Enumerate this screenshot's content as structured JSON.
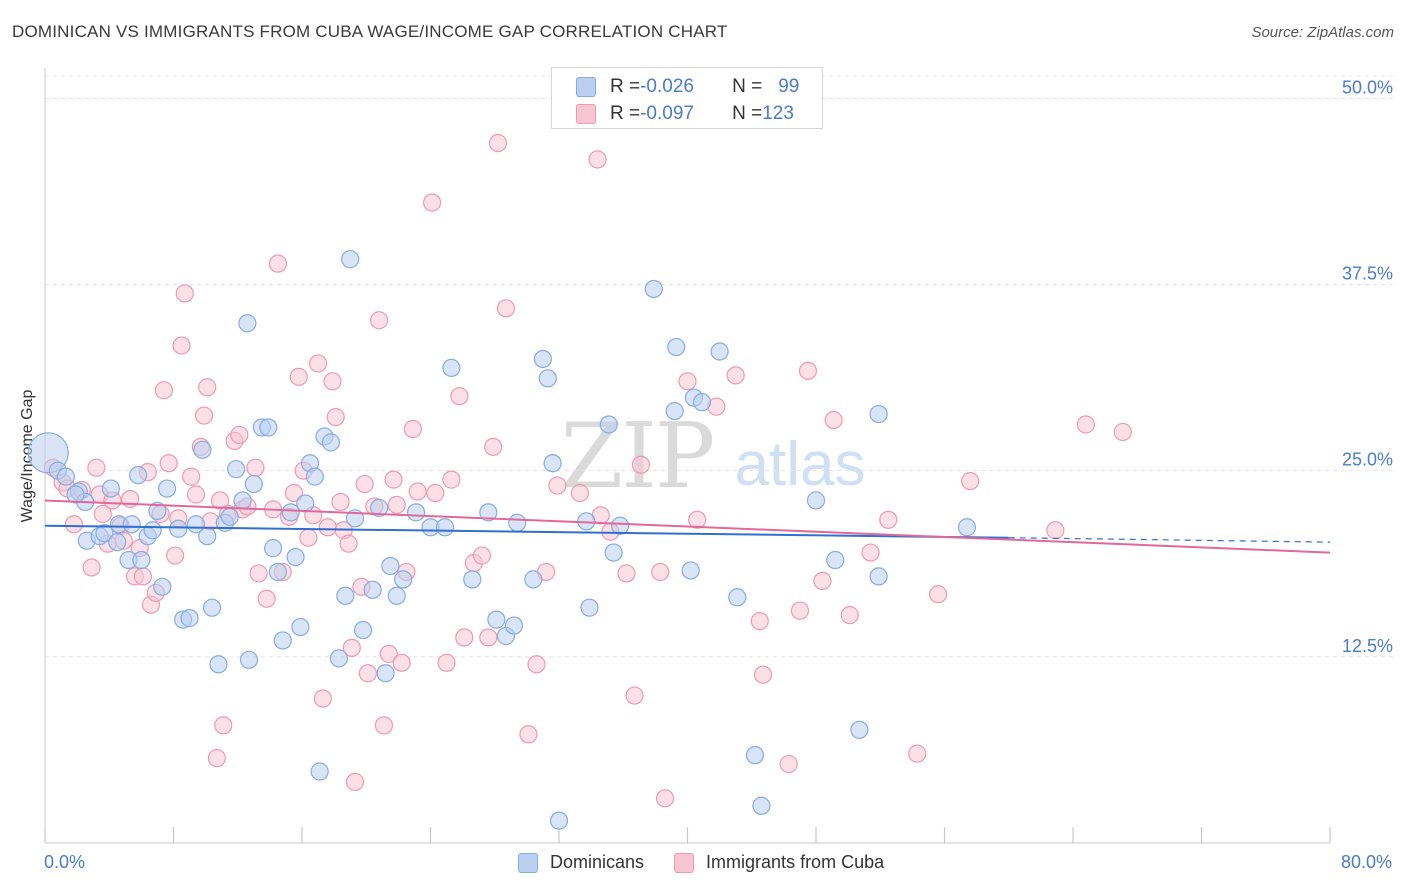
{
  "header": {
    "title": "DOMINICAN VS IMMIGRANTS FROM CUBA WAGE/INCOME GAP CORRELATION CHART",
    "source": "Source: ZipAtlas.com"
  },
  "watermark": {
    "zip": "ZIP",
    "atlas": "atlas"
  },
  "legend_top": {
    "rows": [
      {
        "r_label": "R = ",
        "r_value": "-0.026",
        "n_label": "N = ",
        "n_value": "99",
        "color": "#86ace3"
      },
      {
        "r_label": "R = ",
        "r_value": "-0.097",
        "n_label": "N = ",
        "n_value": "123",
        "color": "#ee9ab2"
      }
    ]
  },
  "legend_bottom": {
    "items": [
      {
        "label": "Dominicans"
      },
      {
        "label": "Immigrants from Cuba"
      }
    ]
  },
  "axes": {
    "x_min_label": "0.0%",
    "x_max_label": "80.0%",
    "y_label": "Wage/Income Gap"
  },
  "chart_data": {
    "type": "scatter",
    "title": "DOMINICAN VS IMMIGRANTS FROM CUBA WAGE/INCOME GAP CORRELATION CHART",
    "xlabel": "",
    "ylabel": "Wage/Income Gap",
    "xlim": [
      0,
      80
    ],
    "ylim": [
      0,
      51.5
    ],
    "y_ticks": [
      12.5,
      25.0,
      37.5,
      50.0
    ],
    "y_tick_labels": [
      "12.5%",
      "25.0%",
      "37.5%",
      "50.0%"
    ],
    "x_tick_labels": [
      "0.0%",
      "80.0%"
    ],
    "grid": true,
    "legend_position": "top-center",
    "series": [
      {
        "name": "Dominicans",
        "color": "#86ace3",
        "fill": "#b9d0f1",
        "r": -0.026,
        "n": 99,
        "trend": {
          "x0": 0,
          "y0": 21.3,
          "x1": 60,
          "y1": 20.5,
          "dash_to_x": 80,
          "dash_to_y": 20.2
        },
        "points": [
          [
            0.2,
            26.2
          ],
          [
            0.8,
            25.0
          ],
          [
            1.3,
            24.6
          ],
          [
            2.1,
            23.6
          ],
          [
            2.5,
            22.9
          ],
          [
            1.9,
            23.4
          ],
          [
            2.6,
            20.3
          ],
          [
            3.4,
            20.6
          ],
          [
            3.7,
            20.8
          ],
          [
            4.1,
            23.8
          ],
          [
            4.5,
            20.2
          ],
          [
            4.6,
            21.4
          ],
          [
            5.2,
            19.0
          ],
          [
            5.4,
            21.4
          ],
          [
            5.8,
            24.7
          ],
          [
            6.0,
            19.0
          ],
          [
            6.4,
            20.6
          ],
          [
            6.7,
            21.0
          ],
          [
            7.0,
            22.3
          ],
          [
            7.3,
            17.2
          ],
          [
            7.6,
            23.8
          ],
          [
            8.3,
            21.1
          ],
          [
            8.6,
            15.0
          ],
          [
            9.0,
            15.1
          ],
          [
            9.4,
            21.4
          ],
          [
            9.8,
            26.4
          ],
          [
            10.1,
            20.6
          ],
          [
            10.4,
            15.8
          ],
          [
            10.8,
            12.0
          ],
          [
            11.2,
            21.5
          ],
          [
            11.5,
            21.9
          ],
          [
            11.9,
            25.1
          ],
          [
            12.3,
            23.0
          ],
          [
            12.6,
            34.9
          ],
          [
            12.7,
            12.3
          ],
          [
            13.0,
            24.1
          ],
          [
            13.5,
            27.9
          ],
          [
            13.9,
            27.9
          ],
          [
            14.2,
            19.8
          ],
          [
            14.5,
            18.2
          ],
          [
            14.8,
            13.6
          ],
          [
            15.3,
            22.2
          ],
          [
            15.6,
            19.2
          ],
          [
            15.9,
            14.5
          ],
          [
            16.2,
            22.8
          ],
          [
            16.5,
            25.5
          ],
          [
            16.8,
            24.6
          ],
          [
            17.1,
            4.8
          ],
          [
            17.4,
            27.3
          ],
          [
            17.8,
            26.9
          ],
          [
            18.3,
            12.4
          ],
          [
            18.7,
            16.6
          ],
          [
            19.0,
            39.2
          ],
          [
            19.3,
            21.8
          ],
          [
            19.8,
            14.3
          ],
          [
            20.4,
            17.0
          ],
          [
            20.8,
            22.5
          ],
          [
            21.2,
            11.4
          ],
          [
            21.5,
            18.6
          ],
          [
            21.9,
            16.6
          ],
          [
            22.3,
            17.7
          ],
          [
            23.1,
            22.2
          ],
          [
            24.0,
            21.2
          ],
          [
            24.9,
            21.2
          ],
          [
            25.3,
            31.9
          ],
          [
            26.6,
            17.7
          ],
          [
            27.6,
            22.2
          ],
          [
            28.1,
            15.0
          ],
          [
            28.7,
            13.9
          ],
          [
            29.2,
            14.6
          ],
          [
            29.4,
            21.5
          ],
          [
            30.4,
            17.7
          ],
          [
            31.0,
            32.5
          ],
          [
            31.6,
            25.5
          ],
          [
            31.3,
            31.2
          ],
          [
            32.0,
            1.5
          ],
          [
            33.7,
            21.6
          ],
          [
            33.9,
            15.8
          ],
          [
            35.1,
            28.1
          ],
          [
            35.4,
            19.5
          ],
          [
            35.8,
            21.3
          ],
          [
            37.9,
            37.2
          ],
          [
            39.2,
            29.0
          ],
          [
            39.3,
            33.3
          ],
          [
            40.2,
            18.3
          ],
          [
            40.4,
            29.9
          ],
          [
            40.9,
            29.6
          ],
          [
            42.0,
            33.0
          ],
          [
            43.1,
            16.5
          ],
          [
            44.2,
            5.9
          ],
          [
            44.6,
            2.5
          ],
          [
            48.0,
            23.0
          ],
          [
            49.2,
            19.0
          ],
          [
            50.7,
            7.6
          ],
          [
            51.9,
            28.8
          ],
          [
            51.9,
            17.9
          ],
          [
            57.4,
            21.2
          ]
        ]
      },
      {
        "name": "Immigrants from Cuba",
        "color": "#ee9ab2",
        "fill": "#f8c6d3",
        "r": -0.097,
        "n": 123,
        "trend": {
          "x0": 0,
          "y0": 23.0,
          "x1": 80,
          "y1": 19.5
        },
        "points": [
          [
            0.5,
            25.2
          ],
          [
            1.1,
            24.2
          ],
          [
            1.4,
            23.8
          ],
          [
            1.8,
            21.4
          ],
          [
            2.3,
            23.7
          ],
          [
            2.9,
            18.5
          ],
          [
            3.2,
            25.2
          ],
          [
            3.4,
            23.4
          ],
          [
            3.6,
            22.1
          ],
          [
            3.9,
            20.1
          ],
          [
            4.2,
            23.0
          ],
          [
            4.7,
            21.3
          ],
          [
            4.9,
            20.3
          ],
          [
            5.3,
            23.1
          ],
          [
            5.6,
            17.9
          ],
          [
            5.9,
            19.8
          ],
          [
            6.1,
            17.9
          ],
          [
            6.4,
            24.9
          ],
          [
            6.6,
            16.0
          ],
          [
            6.9,
            16.8
          ],
          [
            7.2,
            22.1
          ],
          [
            7.4,
            30.4
          ],
          [
            7.7,
            25.5
          ],
          [
            8.1,
            19.3
          ],
          [
            8.3,
            21.8
          ],
          [
            8.5,
            33.4
          ],
          [
            8.7,
            36.9
          ],
          [
            9.1,
            24.6
          ],
          [
            9.4,
            23.4
          ],
          [
            9.7,
            26.6
          ],
          [
            9.9,
            28.7
          ],
          [
            10.1,
            30.6
          ],
          [
            10.3,
            21.6
          ],
          [
            10.7,
            5.7
          ],
          [
            10.9,
            23.0
          ],
          [
            11.1,
            7.9
          ],
          [
            11.4,
            22.1
          ],
          [
            11.8,
            27.0
          ],
          [
            12.1,
            27.4
          ],
          [
            12.3,
            22.4
          ],
          [
            12.6,
            22.6
          ],
          [
            13.1,
            25.2
          ],
          [
            13.3,
            18.1
          ],
          [
            13.8,
            16.4
          ],
          [
            14.2,
            22.4
          ],
          [
            14.5,
            38.9
          ],
          [
            14.8,
            18.2
          ],
          [
            15.2,
            21.9
          ],
          [
            15.5,
            23.5
          ],
          [
            15.8,
            31.3
          ],
          [
            16.1,
            25.0
          ],
          [
            16.4,
            20.5
          ],
          [
            16.7,
            22.0
          ],
          [
            17.0,
            32.2
          ],
          [
            17.3,
            9.7
          ],
          [
            17.6,
            21.2
          ],
          [
            17.9,
            31.0
          ],
          [
            18.1,
            28.6
          ],
          [
            18.4,
            22.9
          ],
          [
            18.6,
            21.0
          ],
          [
            18.9,
            20.1
          ],
          [
            19.1,
            13.1
          ],
          [
            19.3,
            4.1
          ],
          [
            19.7,
            17.2
          ],
          [
            19.9,
            24.1
          ],
          [
            20.1,
            11.4
          ],
          [
            20.5,
            22.6
          ],
          [
            20.8,
            35.1
          ],
          [
            21.1,
            7.9
          ],
          [
            21.4,
            12.7
          ],
          [
            21.7,
            24.4
          ],
          [
            21.9,
            22.7
          ],
          [
            22.2,
            12.1
          ],
          [
            22.5,
            18.2
          ],
          [
            22.9,
            27.8
          ],
          [
            23.2,
            23.6
          ],
          [
            24.1,
            43.0
          ],
          [
            24.3,
            23.5
          ],
          [
            25.0,
            12.1
          ],
          [
            25.3,
            24.4
          ],
          [
            25.8,
            30.0
          ],
          [
            26.1,
            13.8
          ],
          [
            26.7,
            18.8
          ],
          [
            27.2,
            19.3
          ],
          [
            27.6,
            13.8
          ],
          [
            27.9,
            26.6
          ],
          [
            28.2,
            47.0
          ],
          [
            28.7,
            35.9
          ],
          [
            30.1,
            7.3
          ],
          [
            30.6,
            12.0
          ],
          [
            31.2,
            18.2
          ],
          [
            31.9,
            24.0
          ],
          [
            33.3,
            23.5
          ],
          [
            34.4,
            45.9
          ],
          [
            34.6,
            22.0
          ],
          [
            35.2,
            20.9
          ],
          [
            36.2,
            18.1
          ],
          [
            36.7,
            9.9
          ],
          [
            37.1,
            25.4
          ],
          [
            38.3,
            18.2
          ],
          [
            38.6,
            3.0
          ],
          [
            40.0,
            31.0
          ],
          [
            40.6,
            21.7
          ],
          [
            41.8,
            29.3
          ],
          [
            43.0,
            31.4
          ],
          [
            44.5,
            14.9
          ],
          [
            44.7,
            11.3
          ],
          [
            46.3,
            5.3
          ],
          [
            47.0,
            15.6
          ],
          [
            47.5,
            31.7
          ],
          [
            48.4,
            17.6
          ],
          [
            49.1,
            28.4
          ],
          [
            50.1,
            15.3
          ],
          [
            51.4,
            19.5
          ],
          [
            52.5,
            21.7
          ],
          [
            54.3,
            6.0
          ],
          [
            55.6,
            16.7
          ],
          [
            57.6,
            24.3
          ],
          [
            62.9,
            21.0
          ],
          [
            64.8,
            28.1
          ],
          [
            67.1,
            27.6
          ]
        ]
      }
    ]
  }
}
